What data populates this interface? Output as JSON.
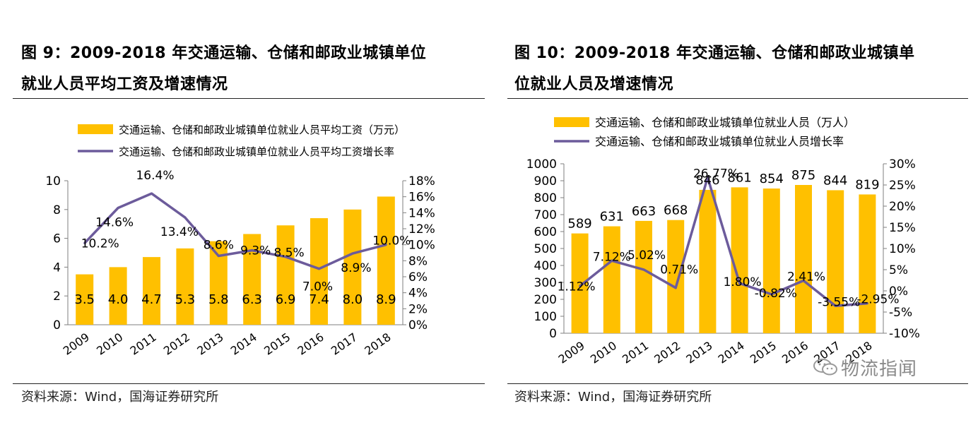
{
  "left_panel": {
    "title_line1": "图 9：2009-2018 年交通运输、仓储和邮政业城镇单位",
    "title_line2": "就业人员平均工资及增速情况",
    "source": "资料来源：Wind，国海证券研究所"
  },
  "right_panel": {
    "title_line1": "图 10：2009-2018 年交通运输、仓储和邮政业城镇单",
    "title_line2": "位就业人员及增速情况",
    "source": "资料来源：Wind，国海证券研究所"
  },
  "watermark": {
    "text": "物流指闻"
  },
  "colors": {
    "bar": "#FFC000",
    "line": "#6C5B9B",
    "axis": "#7f7f7f"
  },
  "chart_data": [
    {
      "type": "bar",
      "categories": [
        "2009",
        "2010",
        "2011",
        "2012",
        "2013",
        "2014",
        "2015",
        "2016",
        "2017",
        "2018"
      ],
      "series": [
        {
          "name": "交通运输、仓储和邮政业城镇单位就业人员平均工资（万元）",
          "type": "bar",
          "axis": "left",
          "values": [
            3.5,
            4.0,
            4.7,
            5.3,
            5.8,
            6.3,
            6.9,
            7.4,
            8.0,
            8.9
          ],
          "labels": [
            "3.5",
            "4.0",
            "4.7",
            "5.3",
            "5.8",
            "6.3",
            "6.9",
            "7.4",
            "8.0",
            "8.9"
          ]
        },
        {
          "name": "交通运输、仓储和邮政业城镇单位就业人员平均工资增长率",
          "type": "line",
          "axis": "right",
          "values": [
            10.2,
            14.6,
            16.4,
            13.4,
            8.6,
            9.3,
            8.5,
            7.0,
            8.9,
            10.0
          ],
          "labels": [
            "10.2%",
            "14.6%",
            "16.4%",
            "13.4%",
            "8.6%",
            "9.3%",
            "8.5%",
            "7.0%",
            "8.9%",
            "10.0%"
          ]
        }
      ],
      "left_axis": {
        "ylim": [
          0,
          10
        ],
        "ticks": [
          "0",
          "2",
          "4",
          "6",
          "8",
          "10"
        ]
      },
      "right_axis": {
        "ylim": [
          0,
          18
        ],
        "ticks": [
          "0%",
          "2%",
          "4%",
          "6%",
          "8%",
          "10%",
          "12%",
          "14%",
          "16%",
          "18%"
        ]
      },
      "legend_position": "top"
    },
    {
      "type": "bar",
      "categories": [
        "2009",
        "2010",
        "2011",
        "2012",
        "2013",
        "2014",
        "2015",
        "2016",
        "2017",
        "2018"
      ],
      "series": [
        {
          "name": "交通运输、仓储和邮政业城镇单位就业人员（万人）",
          "type": "bar",
          "axis": "left",
          "values": [
            589,
            631,
            663,
            668,
            846,
            861,
            854,
            875,
            844,
            819
          ],
          "labels": [
            "589",
            "631",
            "663",
            "668",
            "846",
            "861",
            "854",
            "875",
            "844",
            "819"
          ]
        },
        {
          "name": "交通运输、仓储和邮政业城镇单位就业人员增长率",
          "type": "line",
          "axis": "right",
          "values": [
            1.12,
            7.12,
            5.02,
            0.71,
            26.77,
            1.8,
            -0.82,
            2.41,
            -3.55,
            -2.95
          ],
          "labels": [
            "1.12%",
            "7.12%",
            "5.02%",
            "0.71%",
            "26.77%",
            "1.80%",
            "-0.82%",
            "2.41%",
            "-3.55%",
            "-2.95%"
          ]
        }
      ],
      "left_axis": {
        "ylim": [
          0,
          1000
        ],
        "ticks": [
          "0",
          "100",
          "200",
          "300",
          "400",
          "500",
          "600",
          "700",
          "800",
          "900",
          "1000"
        ]
      },
      "right_axis": {
        "ylim": [
          -10,
          30
        ],
        "ticks": [
          "-10%",
          "-5%",
          "0%",
          "5%",
          "10%",
          "15%",
          "20%",
          "25%",
          "30%"
        ]
      },
      "legend_position": "top"
    }
  ]
}
